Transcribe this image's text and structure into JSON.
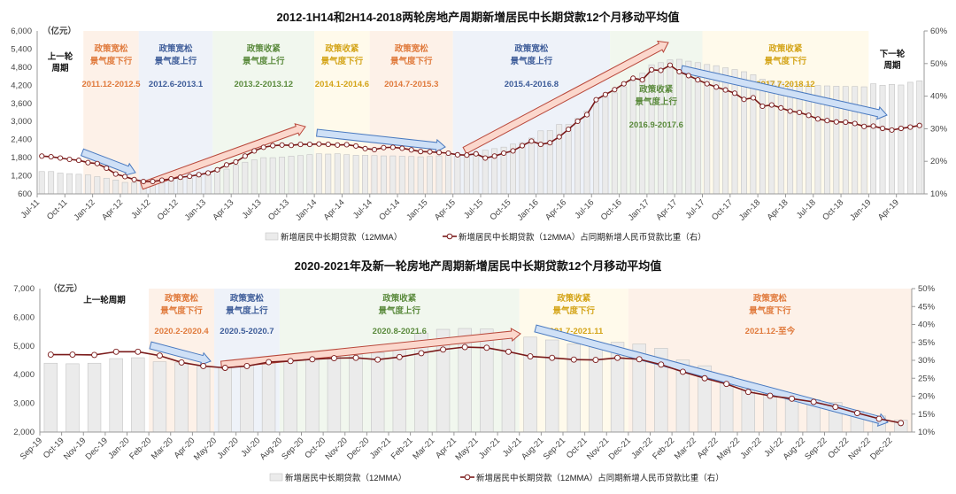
{
  "chart_data": [
    {
      "type": "bar+line",
      "title": "2012-1H14和2H14-2018两轮房地产周期新增居民中长期贷款12个月移动平均值",
      "unit_label": "（亿元）",
      "ylim_left": [
        600,
        6000
      ],
      "yticks_left": [
        "600",
        "1,200",
        "1,800",
        "2,400",
        "3,000",
        "3,600",
        "4,200",
        "4,800",
        "5,400",
        "6,000"
      ],
      "ylim_right": [
        10,
        60
      ],
      "yticks_right": [
        "10%",
        "20%",
        "30%",
        "40%",
        "50%",
        "60%"
      ],
      "grid": false,
      "legend_position": "bottom",
      "tick_every": 3,
      "categories": [
        "Jul-11",
        "Aug-11",
        "Sep-11",
        "Oct-11",
        "Nov-11",
        "Dec-11",
        "Jan-12",
        "Feb-12",
        "Mar-12",
        "Apr-12",
        "May-12",
        "Jun-12",
        "Jul-12",
        "Aug-12",
        "Sep-12",
        "Oct-12",
        "Nov-12",
        "Dec-12",
        "Jan-13",
        "Feb-13",
        "Mar-13",
        "Apr-13",
        "May-13",
        "Jun-13",
        "Jul-13",
        "Aug-13",
        "Sep-13",
        "Oct-13",
        "Nov-13",
        "Dec-13",
        "Jan-14",
        "Feb-14",
        "Mar-14",
        "Apr-14",
        "May-14",
        "Jun-14",
        "Jul-14",
        "Aug-14",
        "Sep-14",
        "Oct-14",
        "Nov-14",
        "Dec-14",
        "Jan-15",
        "Feb-15",
        "Mar-15",
        "Apr-15",
        "May-15",
        "Jun-15",
        "Jul-15",
        "Aug-15",
        "Sep-15",
        "Oct-15",
        "Nov-15",
        "Dec-15",
        "Jan-16",
        "Feb-16",
        "Mar-16",
        "Apr-16",
        "May-16",
        "Jun-16",
        "Jul-16",
        "Aug-16",
        "Sep-16",
        "Oct-16",
        "Nov-16",
        "Dec-16",
        "Jan-17",
        "Feb-17",
        "Mar-17",
        "Apr-17",
        "May-17",
        "Jun-17",
        "Jul-17",
        "Aug-17",
        "Sep-17",
        "Oct-17",
        "Nov-17",
        "Dec-17",
        "Jan-18",
        "Feb-18",
        "Mar-18",
        "Apr-18",
        "May-18",
        "Jun-18",
        "Jul-18",
        "Aug-18",
        "Sep-18",
        "Oct-18",
        "Nov-18",
        "Dec-18",
        "Jan-19",
        "Feb-19",
        "Mar-19",
        "Apr-19",
        "May-19",
        "Jun-19"
      ],
      "series": [
        {
          "name": "新增居民中长期贷款（12MMA）",
          "type": "bar",
          "axis": "left",
          "color": "#ebebeb",
          "values": [
            1340,
            1340,
            1290,
            1270,
            1250,
            1230,
            1170,
            1120,
            1060,
            980,
            970,
            920,
            930,
            970,
            1040,
            1080,
            1120,
            1160,
            1260,
            1350,
            1420,
            1550,
            1650,
            1730,
            1800,
            1800,
            1820,
            1850,
            1870,
            1900,
            1930,
            1920,
            1930,
            1900,
            1880,
            1880,
            1870,
            1860,
            1860,
            1850,
            1840,
            1830,
            1840,
            1860,
            1870,
            1850,
            1860,
            1950,
            2050,
            2100,
            2150,
            2250,
            2300,
            2450,
            2690,
            2700,
            2900,
            2900,
            3100,
            3350,
            3620,
            3800,
            3950,
            4150,
            4350,
            4600,
            4880,
            4950,
            5040,
            5060,
            5000,
            4950,
            4890,
            4850,
            4780,
            4720,
            4650,
            4550,
            4400,
            4350,
            4300,
            4250,
            4230,
            4220,
            4190,
            4180,
            4170,
            4160,
            4160,
            4150,
            4250,
            4200,
            4230,
            4210,
            4300,
            4350
          ]
        },
        {
          "name": "新增居民中长期贷款（12MMA）占同期新增人民币贷款比重（右）",
          "type": "line",
          "axis": "right",
          "color": "#7a1a1a",
          "values": [
            21.6,
            21.4,
            21.0,
            20.6,
            20.3,
            19.6,
            19.3,
            17.9,
            16.1,
            15.3,
            14.4,
            13.8,
            13.8,
            14.2,
            14.6,
            15.1,
            15.4,
            15.9,
            16.4,
            17.4,
            18.9,
            19.8,
            21.6,
            23.2,
            24.3,
            24.8,
            25.0,
            24.9,
            25.2,
            25.2,
            25.3,
            25.2,
            25.0,
            25.1,
            24.7,
            23.9,
            23.6,
            24.2,
            24.3,
            24.0,
            23.5,
            23.0,
            22.9,
            22.7,
            22.5,
            22.0,
            21.9,
            22.3,
            21.0,
            21.6,
            22.5,
            23.2,
            24.8,
            26.2,
            25.2,
            25.7,
            27.5,
            29.8,
            32.3,
            34.3,
            38.9,
            40.5,
            42.0,
            43.8,
            45.5,
            45.0,
            48.1,
            47.9,
            49.5,
            47.5,
            46.3,
            45.0,
            43.8,
            42.8,
            41.9,
            40.9,
            39.0,
            39.5,
            36.9,
            37.3,
            36.4,
            35.4,
            35.0,
            34.1,
            33.0,
            32.5,
            32.1,
            32.0,
            31.6,
            30.7,
            30.8,
            30.1,
            29.6,
            30.1,
            30.5,
            31.0
          ]
        }
      ],
      "side_labels": {
        "previous": [
          "上一轮",
          "周期"
        ],
        "next": [
          "下一轮",
          "周期"
        ]
      },
      "periods": [
        {
          "policy": "政策宽松",
          "sentiment": "景气度下行",
          "range": "2011.12-2012.5",
          "start": "Dec-11",
          "end": "May-12",
          "color": "#e07a3c",
          "bg": "#fdf1e8"
        },
        {
          "policy": "政策宽松",
          "sentiment": "景气度上行",
          "range": "2012.6-2013.1",
          "start": "Jun-12",
          "end": "Jan-13",
          "color": "#3d5c99",
          "bg": "#eef2f9"
        },
        {
          "policy": "政策收紧",
          "sentiment": "景气度上行",
          "range": "2013.2-2013.12",
          "start": "Feb-13",
          "end": "Dec-13",
          "color": "#5a8a3c",
          "bg": "#f1f7ee"
        },
        {
          "policy": "政策收紧",
          "sentiment": "景气度下行",
          "range": "2014.1-2014.6",
          "start": "Jan-14",
          "end": "Jun-14",
          "color": "#d4a418",
          "bg": "#fffaeb"
        },
        {
          "policy": "政策宽松",
          "sentiment": "景气度下行",
          "range": "2014.7-2015.3",
          "start": "Jul-14",
          "end": "Mar-15",
          "color": "#e07a3c",
          "bg": "#fdf1e8"
        },
        {
          "policy": "政策宽松",
          "sentiment": "景气度上行",
          "range": "2015.4-2016.8",
          "start": "Apr-15",
          "end": "Aug-16",
          "color": "#3d5c99",
          "bg": "#eef2f9"
        },
        {
          "policy": "政策收紧",
          "sentiment": "景气度上行",
          "range": "2016.9-2017.6",
          "start": "Sep-16",
          "end": "Jun-17",
          "color": "#5a8a3c",
          "bg": "#f1f7ee",
          "text_low": true
        },
        {
          "policy": "政策收紧",
          "sentiment": "景气度下行",
          "range": "2017.7-2018.12",
          "start": "Jul-17",
          "end": "Dec-18",
          "color": "#d4a418",
          "bg": "#fffaeb"
        }
      ]
    },
    {
      "type": "bar+line",
      "title": "2020-2021年及新一轮房地产周期新增居民中长期贷款12个月移动平均值",
      "unit_label": "（亿元）",
      "ylim_left": [
        2000,
        7000
      ],
      "yticks_left": [
        "2,000",
        "3,000",
        "4,000",
        "5,000",
        "6,000",
        "7,000"
      ],
      "ylim_right": [
        10,
        50
      ],
      "yticks_right": [
        "10%",
        "15%",
        "20%",
        "25%",
        "30%",
        "35%",
        "40%",
        "45%",
        "50%"
      ],
      "grid": false,
      "legend_position": "bottom",
      "tick_every": 1,
      "categories": [
        "Sep-19",
        "Oct-19",
        "Nov-19",
        "Dec-19",
        "Jan-20",
        "Feb-20",
        "Mar-20",
        "Apr-20",
        "May-20",
        "Jun-20",
        "Jul-20",
        "Aug-20",
        "Sep-20",
        "Oct-20",
        "Nov-20",
        "Dec-20",
        "Jan-21",
        "Feb-21",
        "Mar-21",
        "Apr-21",
        "May-21",
        "Jun-21",
        "Jul-21",
        "Aug-21",
        "Sep-21",
        "Oct-21",
        "Nov-21",
        "Dec-21",
        "Jan-22",
        "Feb-22",
        "Mar-22",
        "Apr-22",
        "May-22",
        "Jun-22",
        "Jul-22",
        "Aug-22",
        "Sep-22",
        "Oct-22",
        "Nov-22",
        "Dec-22"
      ],
      "series": [
        {
          "name": "新增居民中长期贷款（12MMA）",
          "type": "bar",
          "axis": "left",
          "color": "#ebebeb",
          "values": [
            4400,
            4380,
            4400,
            4560,
            4590,
            4450,
            4420,
            4300,
            4250,
            4320,
            4420,
            4510,
            4630,
            4660,
            4700,
            4770,
            4880,
            5450,
            5580,
            5610,
            5590,
            5490,
            5310,
            5210,
            5070,
            5020,
            5130,
            5070,
            4920,
            4510,
            4310,
            3950,
            3640,
            3440,
            3280,
            3130,
            3030,
            2720,
            2560,
            2410
          ]
        },
        {
          "name": "新增居民中长期贷款（12MMA）占同期新增人民币贷款比重（右）",
          "type": "line",
          "axis": "right",
          "color": "#7a1a1a",
          "values": [
            31.6,
            31.6,
            31.5,
            32.4,
            32.4,
            31.3,
            29.4,
            28.4,
            27.9,
            28.4,
            29.5,
            29.8,
            30.3,
            30.6,
            30.7,
            30.2,
            30.9,
            32.0,
            33.0,
            33.7,
            33.5,
            32.4,
            31.1,
            30.7,
            30.2,
            30.1,
            30.7,
            30.3,
            28.8,
            26.8,
            25.0,
            23.4,
            21.2,
            20.1,
            19.3,
            18.4,
            17.0,
            15.3,
            13.7,
            12.5
          ]
        }
      ],
      "side_labels": {
        "previous": [
          "上一轮周期"
        ]
      },
      "periods": [
        {
          "policy": "政策宽松",
          "sentiment": "景气度下行",
          "range": "2020.2-2020.4",
          "start": "Feb-20",
          "end": "Apr-20",
          "color": "#e07a3c",
          "bg": "#fdf1e8"
        },
        {
          "policy": "政策宽松",
          "sentiment": "景气度上行",
          "range": "2020.5-2020.7",
          "start": "May-20",
          "end": "Jul-20",
          "color": "#3d5c99",
          "bg": "#eef2f9"
        },
        {
          "policy": "政策收紧",
          "sentiment": "景气度上行",
          "range": "2020.8-2021.6",
          "start": "Aug-20",
          "end": "Jun-21",
          "color": "#5a8a3c",
          "bg": "#f1f7ee"
        },
        {
          "policy": "政策收紧",
          "sentiment": "景气度下行",
          "range": "2021.7-2021.11",
          "start": "Jul-21",
          "end": "Nov-21",
          "color": "#d4a418",
          "bg": "#fffaeb"
        },
        {
          "policy": "政策宽松",
          "sentiment": "景气度下行",
          "range": "2021.12-至今",
          "start": "Dec-21",
          "end": "Dec-22",
          "color": "#e07a3c",
          "bg": "#fdf1e8"
        }
      ]
    }
  ]
}
